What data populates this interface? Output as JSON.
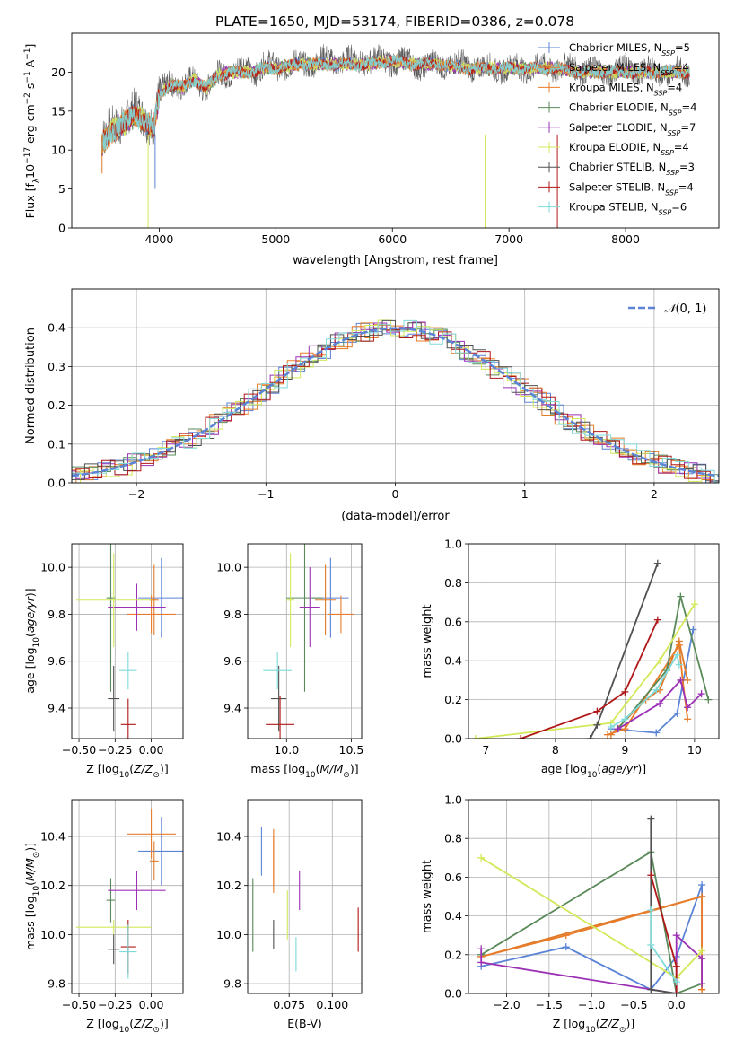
{
  "figure_title": "PLATE=1650, MJD=53174, FIBERID=0386, z=0.078",
  "models": [
    {
      "name": "Chabrier MILES, N$_{SSP}$=5",
      "label_main": "Chabrier MILES, N",
      "label_sub": "SSP",
      "label_tail": "=5",
      "color": "#5b84d6"
    },
    {
      "name": "Salpeter MILES, N$_{SSP}$=4",
      "label_main": "Salpeter MILES, N",
      "label_sub": "SSP",
      "label_tail": "=4",
      "color": "#e07b28"
    },
    {
      "name": "Kroupa MILES, N$_{SSP}$=4",
      "label_main": "Kroupa MILES, N",
      "label_sub": "SSP",
      "label_tail": "=4",
      "color": "#e87c2a"
    },
    {
      "name": "Chabrier ELODIE, N$_{SSP}$=4",
      "label_main": "Chabrier ELODIE, N",
      "label_sub": "SSP",
      "label_tail": "=4",
      "color": "#5a8a5a"
    },
    {
      "name": "Salpeter ELODIE, N$_{SSP}$=7",
      "label_main": "Salpeter ELODIE, N",
      "label_sub": "SSP",
      "label_tail": "=7",
      "color": "#9b30b5"
    },
    {
      "name": "Kroupa ELODIE, N$_{SSP}$=4",
      "label_main": "Kroupa ELODIE, N",
      "label_sub": "SSP",
      "label_tail": "=4",
      "color": "#d4e85a"
    },
    {
      "name": "Chabrier STELIB, N$_{SSP}$=3",
      "label_main": "Chabrier STELIB, N",
      "label_sub": "SSP",
      "label_tail": "=3",
      "color": "#505050"
    },
    {
      "name": "Salpeter STELIB, N$_{SSP}$=4",
      "label_main": "Salpeter STELIB, N",
      "label_sub": "SSP",
      "label_tail": "=4",
      "color": "#b01818"
    },
    {
      "name": "Kroupa STELIB, N$_{SSP}$=6",
      "label_main": "Kroupa STELIB, N",
      "label_sub": "SSP",
      "label_tail": "=6",
      "color": "#7fdada"
    }
  ],
  "chart_data": [
    {
      "id": "spectrum",
      "type": "line",
      "xlabel": "wavelength [Angstrom, rest frame]",
      "ylabel": "Flux [f$_\\lambda$10$^{-17}$ erg cm$^{-2}$ s$^{-1}$ A$^{-1}$]",
      "xlim": [
        3250,
        8800
      ],
      "ylim": [
        0,
        25
      ],
      "xticks": [
        4000,
        5000,
        6000,
        7000,
        8000
      ],
      "yticks": [
        0,
        5,
        10,
        15,
        20
      ],
      "x": [
        3500,
        3600,
        3700,
        3800,
        3900,
        3950,
        4000,
        4100,
        4200,
        4300,
        4400,
        4500,
        4600,
        4700,
        4800,
        4900,
        5000,
        5200,
        5400,
        5600,
        5800,
        6000,
        6200,
        6400,
        6600,
        6800,
        7000,
        7200,
        7400,
        7600,
        7800,
        8000,
        8200,
        8400,
        8550
      ],
      "data_flux": [
        11,
        13,
        14,
        15,
        14,
        13,
        17,
        19,
        18,
        19,
        18,
        19.5,
        20,
        20.5,
        20,
        21,
        20.5,
        21,
        21.5,
        21.5,
        21.5,
        21.5,
        21,
        21,
        21,
        20.5,
        20.5,
        20.5,
        20.5,
        20.5,
        20,
        20.5,
        20,
        20,
        20
      ],
      "model_flux": [
        10.5,
        12.5,
        13.5,
        14.5,
        13.5,
        12.5,
        17,
        18.5,
        18,
        19,
        18,
        19.5,
        20,
        20,
        20,
        20.5,
        20.5,
        21,
        21,
        21,
        21,
        21.5,
        21,
        21,
        20.5,
        20.5,
        20.5,
        20.5,
        20.5,
        20,
        20,
        20,
        20,
        20,
        20
      ],
      "legend_position": "upper right"
    },
    {
      "id": "residuals",
      "type": "histogram",
      "xlabel": "(data-model)/error",
      "ylabel": "Normed distribution",
      "xlim": [
        -2.5,
        2.5
      ],
      "ylim": [
        0,
        0.5
      ],
      "xticks": [
        -2,
        -1,
        0,
        1,
        2
      ],
      "yticks": [
        0.0,
        0.1,
        0.2,
        0.3,
        0.4
      ],
      "grid": true,
      "reference_curve": "N(0,1)",
      "legend_label": "$\\mathcal{N}(0,1)$",
      "legend_position": "upper right"
    },
    {
      "id": "age_vs_Z",
      "type": "scatter",
      "xlabel": "Z [log$_{10}$(Z/Z$_\\odot$)]",
      "ylabel": "age  [log$_{10}$(age/yr)]",
      "xlim": [
        -0.55,
        0.22
      ],
      "ylim": [
        9.27,
        10.1
      ],
      "xticks": [
        -0.5,
        -0.25,
        0.0
      ],
      "yticks": [
        9.4,
        9.6,
        9.8,
        10.0
      ],
      "grid": true,
      "points": [
        {
          "model": 0,
          "x": 0.07,
          "y": 9.87,
          "xerr": 0.16,
          "yerr": 0.17
        },
        {
          "model": 1,
          "x": 0.02,
          "y": 9.86,
          "xerr": 0.03,
          "yerr": 0.15
        },
        {
          "model": 2,
          "x": 0.0,
          "y": 9.8,
          "xerr": 0.17,
          "yerr": 0.08
        },
        {
          "model": 3,
          "x": -0.28,
          "y": 9.87,
          "xerr": 0.03,
          "yerr": 0.4
        },
        {
          "model": 4,
          "x": -0.1,
          "y": 9.83,
          "xerr": 0.2,
          "yerr": 0.1
        },
        {
          "model": 5,
          "x": -0.26,
          "y": 9.86,
          "xerr": 0.26,
          "yerr": 0.2
        },
        {
          "model": 6,
          "x": -0.26,
          "y": 9.44,
          "xerr": 0.04,
          "yerr": 0.14
        },
        {
          "model": 7,
          "x": -0.16,
          "y": 9.33,
          "xerr": 0.05,
          "yerr": 0.11
        },
        {
          "model": 8,
          "x": -0.16,
          "y": 9.56,
          "xerr": 0.06,
          "yerr": 0.08
        }
      ]
    },
    {
      "id": "age_vs_mass",
      "type": "scatter",
      "xlabel": "mass [log$_{10}$(M/M$_\\odot$)]",
      "ylabel": "",
      "xlim": [
        9.7,
        10.58
      ],
      "ylim": [
        9.27,
        10.1
      ],
      "xticks": [
        10.0,
        10.5
      ],
      "yticks": [
        9.4,
        9.6,
        9.8,
        10.0
      ],
      "grid": true,
      "points": [
        {
          "model": 0,
          "x": 10.34,
          "y": 9.87,
          "xerr": 0.14,
          "yerr": 0.17
        },
        {
          "model": 1,
          "x": 10.3,
          "y": 9.86,
          "xerr": 0.08,
          "yerr": 0.15
        },
        {
          "model": 2,
          "x": 10.42,
          "y": 9.8,
          "xerr": 0.1,
          "yerr": 0.08
        },
        {
          "model": 3,
          "x": 10.14,
          "y": 9.87,
          "xerr": 0.14,
          "yerr": 0.4
        },
        {
          "model": 4,
          "x": 10.18,
          "y": 9.83,
          "xerr": 0.08,
          "yerr": 0.17
        },
        {
          "model": 5,
          "x": 10.03,
          "y": 9.86,
          "xerr": 0.03,
          "yerr": 0.2
        },
        {
          "model": 6,
          "x": 9.94,
          "y": 9.44,
          "xerr": 0.06,
          "yerr": 0.14
        },
        {
          "model": 7,
          "x": 9.95,
          "y": 9.33,
          "xerr": 0.11,
          "yerr": 0.12
        },
        {
          "model": 8,
          "x": 9.93,
          "y": 9.56,
          "xerr": 0.11,
          "yerr": 0.08
        }
      ]
    },
    {
      "id": "weight_vs_age",
      "type": "line",
      "xlabel": "age  [log$_{10}$(age/yr)]",
      "ylabel": "mass weight",
      "xlim": [
        6.75,
        10.35
      ],
      "ylim": [
        0,
        1
      ],
      "xticks": [
        7,
        8,
        9,
        10
      ],
      "yticks": [
        0.0,
        0.2,
        0.4,
        0.6,
        0.8,
        1.0
      ],
      "grid": true,
      "series": [
        {
          "model": 0,
          "x": [
            8.8,
            9.45,
            9.75,
            9.98
          ],
          "y": [
            0.05,
            0.03,
            0.13,
            0.56
          ]
        },
        {
          "model": 1,
          "x": [
            8.8,
            9.3,
            9.5,
            9.78,
            9.9
          ],
          "y": [
            0.02,
            0.2,
            0.25,
            0.5,
            0.3
          ]
        },
        {
          "model": 2,
          "x": [
            8.75,
            9.0,
            9.78,
            9.83,
            9.9
          ],
          "y": [
            0.02,
            0.05,
            0.48,
            0.3,
            0.1
          ]
        },
        {
          "model": 3,
          "x": [
            8.9,
            9.6,
            9.8,
            10.2
          ],
          "y": [
            0.05,
            0.35,
            0.73,
            0.2
          ]
        },
        {
          "model": 4,
          "x": [
            8.9,
            9.5,
            9.8,
            9.9,
            10.1
          ],
          "y": [
            0.05,
            0.18,
            0.3,
            0.16,
            0.23
          ]
        },
        {
          "model": 5,
          "x": [
            6.85,
            8.8,
            9.5,
            10.0
          ],
          "y": [
            0.0,
            0.08,
            0.4,
            0.69
          ]
        },
        {
          "model": 6,
          "x": [
            8.5,
            8.6,
            9.47
          ],
          "y": [
            0.0,
            0.07,
            0.9
          ]
        },
        {
          "model": 7,
          "x": [
            7.5,
            8.6,
            9.0,
            9.47
          ],
          "y": [
            0.0,
            0.14,
            0.24,
            0.61
          ]
        },
        {
          "model": 8,
          "x": [
            8.8,
            9.0,
            9.45,
            9.75,
            9.78
          ],
          "y": [
            0.06,
            0.1,
            0.25,
            0.43,
            0.38
          ]
        }
      ]
    },
    {
      "id": "mass_vs_Z",
      "type": "scatter",
      "xlabel": "Z [log$_{10}$(Z/Z$_\\odot$)]",
      "ylabel": "mass [log$_{10}$(M/M$_\\odot$)]",
      "xlim": [
        -0.55,
        0.22
      ],
      "ylim": [
        9.76,
        10.55
      ],
      "xticks": [
        -0.5,
        -0.25,
        0.0
      ],
      "yticks": [
        9.8,
        10.0,
        10.2,
        10.4
      ],
      "grid": true,
      "points": [
        {
          "model": 0,
          "x": 0.07,
          "y": 10.34,
          "xerr": 0.16,
          "yerr": 0.14
        },
        {
          "model": 1,
          "x": 0.02,
          "y": 10.3,
          "xerr": 0.03,
          "yerr": 0.08
        },
        {
          "model": 2,
          "x": 0.0,
          "y": 10.41,
          "xerr": 0.17,
          "yerr": 0.1
        },
        {
          "model": 3,
          "x": -0.28,
          "y": 10.14,
          "xerr": 0.03,
          "yerr": 0.09
        },
        {
          "model": 4,
          "x": -0.1,
          "y": 10.18,
          "xerr": 0.2,
          "yerr": 0.08
        },
        {
          "model": 5,
          "x": -0.26,
          "y": 10.03,
          "xerr": 0.26,
          "yerr": 0.03
        },
        {
          "model": 6,
          "x": -0.26,
          "y": 9.94,
          "xerr": 0.04,
          "yerr": 0.06
        },
        {
          "model": 7,
          "x": -0.16,
          "y": 9.95,
          "xerr": 0.05,
          "yerr": 0.11
        },
        {
          "model": 8,
          "x": -0.16,
          "y": 9.93,
          "xerr": 0.06,
          "yerr": 0.11
        }
      ]
    },
    {
      "id": "mass_vs_EBV",
      "type": "scatter",
      "xlabel": "E(B-V)",
      "ylabel": "",
      "xlim": [
        0.051,
        0.117
      ],
      "ylim": [
        9.76,
        10.55
      ],
      "xticks": [
        0.075,
        0.1
      ],
      "yticks": [
        9.8,
        10.0,
        10.2,
        10.4
      ],
      "grid": true,
      "points": [
        {
          "model": 0,
          "x": 0.059,
          "y": 10.34,
          "xerr": 0,
          "yerr": 0.1
        },
        {
          "model": 1,
          "x": 0.066,
          "y": 10.3,
          "xerr": 0,
          "yerr": 0.13
        },
        {
          "model": 2,
          "x": 0.066,
          "y": 10.3,
          "xerr": 0,
          "yerr": 0.1
        },
        {
          "model": 3,
          "x": 0.054,
          "y": 10.08,
          "xerr": 0,
          "yerr": 0.15
        },
        {
          "model": 4,
          "x": 0.081,
          "y": 10.18,
          "xerr": 0,
          "yerr": 0.08
        },
        {
          "model": 5,
          "x": 0.074,
          "y": 10.08,
          "xerr": 0,
          "yerr": 0.1
        },
        {
          "model": 6,
          "x": 0.066,
          "y": 10.0,
          "xerr": 0,
          "yerr": 0.06
        },
        {
          "model": 7,
          "x": 0.115,
          "y": 10.02,
          "xerr": 0,
          "yerr": 0.09
        },
        {
          "model": 8,
          "x": 0.079,
          "y": 9.92,
          "xerr": 0,
          "yerr": 0.07
        }
      ]
    },
    {
      "id": "weight_vs_Z",
      "type": "line",
      "xlabel": "Z [log$_{10}$(Z/Z$_\\odot$)]",
      "ylabel": "mass weight",
      "xlim": [
        -2.45,
        0.5
      ],
      "ylim": [
        0,
        1
      ],
      "xticks": [
        -2.0,
        -1.5,
        -1.0,
        -0.5,
        0.0
      ],
      "yticks": [
        0.0,
        0.2,
        0.4,
        0.6,
        0.8,
        1.0
      ],
      "grid": true,
      "series": [
        {
          "model": 0,
          "x": [
            -2.3,
            -1.3,
            -0.3,
            0.0,
            0.3,
            0.3
          ],
          "y": [
            0.14,
            0.24,
            0.02,
            0.19,
            0.56,
            0.5
          ]
        },
        {
          "model": 1,
          "x": [
            -2.3,
            0.3,
            0.3
          ],
          "y": [
            0.19,
            0.5,
            0.02
          ]
        },
        {
          "model": 2,
          "x": [
            -2.3,
            -1.3,
            0.3,
            0.3
          ],
          "y": [
            0.19,
            0.3,
            0.5,
            0.02
          ]
        },
        {
          "model": 3,
          "x": [
            -2.3,
            -0.3,
            0.0,
            0.3
          ],
          "y": [
            0.2,
            0.73,
            0.0,
            0.05
          ]
        },
        {
          "model": 4,
          "x": [
            -2.3,
            -2.3,
            0.0,
            0.0,
            0.3,
            0.3
          ],
          "y": [
            0.23,
            0.16,
            0.0,
            0.3,
            0.18,
            0.05
          ]
        },
        {
          "model": 5,
          "x": [
            -2.3,
            0.0,
            0.3
          ],
          "y": [
            0.7,
            0.08,
            0.22
          ]
        },
        {
          "model": 6,
          "x": [
            -0.3,
            -0.3,
            0.0
          ],
          "y": [
            0.9,
            0.02,
            0.0
          ]
        },
        {
          "model": 7,
          "x": [
            -0.3,
            0.0,
            0.0
          ],
          "y": [
            0.61,
            0.14,
            0.0
          ]
        },
        {
          "model": 8,
          "x": [
            -0.3,
            -0.3,
            0.0
          ],
          "y": [
            0.43,
            0.25,
            0.06
          ]
        }
      ]
    }
  ]
}
